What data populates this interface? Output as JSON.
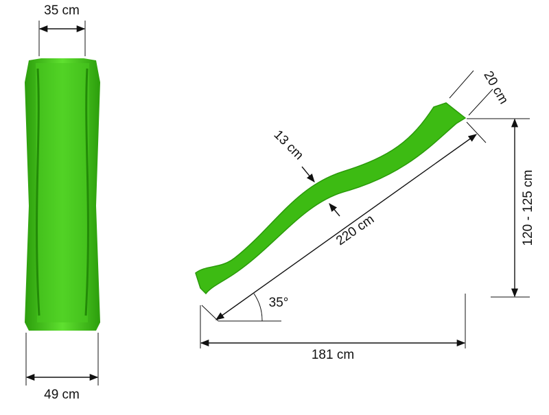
{
  "front_view": {
    "top_width": "35 cm",
    "bottom_width": "49 cm"
  },
  "side_view": {
    "lip_length": "20 cm",
    "wall_height": "13 cm",
    "slide_length": "220 cm",
    "height": "120 - 125 cm",
    "angle": "35°",
    "ground_length": "181 cm"
  }
}
